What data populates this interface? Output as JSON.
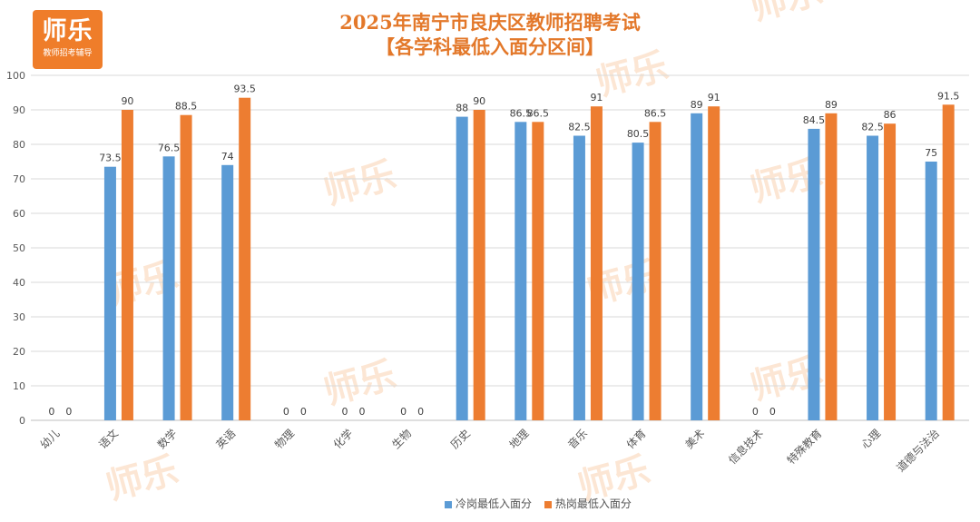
{
  "logo": {
    "text": "师乐",
    "subtitle": "教师招考辅导"
  },
  "title_line1": "2025年南宁市良庆区教师招聘考试",
  "title_line2": "【各学科最低入面分区间】",
  "watermark": "师乐",
  "colors": {
    "series1": "#5b9bd5",
    "series2": "#ed7d31",
    "title": "#e3782a",
    "grid": "#d9d9d9",
    "axis_text": "#595959"
  },
  "chart_data": {
    "type": "bar",
    "categories": [
      "幼儿",
      "语文",
      "数学",
      "英语",
      "物理",
      "化学",
      "生物",
      "历史",
      "地理",
      "音乐",
      "体育",
      "美术",
      "信息技术",
      "特殊教育",
      "心理",
      "道德与法治"
    ],
    "series": [
      {
        "name": "冷岗最低入面分",
        "values": [
          0,
          73.5,
          76.5,
          74,
          0,
          0,
          0,
          88,
          86.5,
          82.5,
          80.5,
          89,
          0,
          84.5,
          82.5,
          75
        ]
      },
      {
        "name": "热岗最低入面分",
        "values": [
          0,
          90,
          88.5,
          93.5,
          0,
          0,
          0,
          90,
          86.5,
          91,
          86.5,
          91,
          0,
          89,
          86,
          91.5
        ]
      }
    ],
    "ylim": [
      0,
      100
    ],
    "yticks": [
      0,
      10,
      20,
      30,
      40,
      50,
      60,
      70,
      80,
      90,
      100
    ],
    "grid": true,
    "legend": "bottom"
  }
}
